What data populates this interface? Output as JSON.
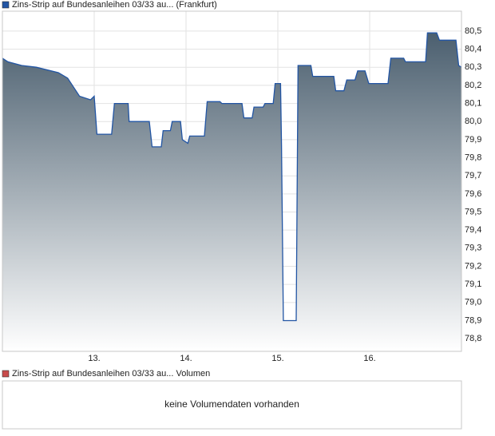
{
  "chart_data": [
    {
      "type": "area",
      "xlim": [
        12,
        17
      ],
      "xticks": [
        {
          "value": 13,
          "label": "13."
        },
        {
          "value": 14,
          "label": "14."
        },
        {
          "value": 15,
          "label": "15."
        },
        {
          "value": 16,
          "label": "16."
        }
      ],
      "ylim": [
        78.73,
        80.61
      ],
      "yticks": [
        {
          "value": 80.5,
          "label": "80,5"
        },
        {
          "value": 80.4,
          "label": "80,4"
        },
        {
          "value": 80.3,
          "label": "80,3"
        },
        {
          "value": 80.2,
          "label": "80,2"
        },
        {
          "value": 80.1,
          "label": "80,1"
        },
        {
          "value": 80.0,
          "label": "80,0"
        },
        {
          "value": 79.9,
          "label": "79,9"
        },
        {
          "value": 79.8,
          "label": "79,8"
        },
        {
          "value": 79.7,
          "label": "79,7"
        },
        {
          "value": 79.6,
          "label": "79,6"
        },
        {
          "value": 79.5,
          "label": "79,5"
        },
        {
          "value": 79.4,
          "label": "79,4"
        },
        {
          "value": 79.3,
          "label": "79,3"
        },
        {
          "value": 79.2,
          "label": "79,2"
        },
        {
          "value": 79.1,
          "label": "79,1"
        },
        {
          "value": 79.0,
          "label": "79,0"
        },
        {
          "value": 78.9,
          "label": "78,9"
        },
        {
          "value": 78.8,
          "label": "78,8"
        }
      ],
      "grid": true,
      "x": [
        12.0,
        12.06,
        12.21,
        12.37,
        12.61,
        12.71,
        12.84,
        12.96,
        13.0,
        13.03,
        13.19,
        13.22,
        13.37,
        13.38,
        13.6,
        13.63,
        13.73,
        13.75,
        13.83,
        13.85,
        13.94,
        13.96,
        14.02,
        14.04,
        14.2,
        14.23,
        14.37,
        14.39,
        14.61,
        14.63,
        14.72,
        14.74,
        14.84,
        14.86,
        14.95,
        14.97,
        15.03,
        15.04,
        15.06,
        15.2,
        15.22,
        15.36,
        15.38,
        15.61,
        15.63,
        15.72,
        15.75,
        15.84,
        15.87,
        15.95,
        15.99,
        16.2,
        16.23,
        16.37,
        16.39,
        16.61,
        16.63,
        16.73,
        16.76,
        16.94,
        16.97,
        17.0
      ],
      "series": [
        {
          "name": "Zins-Strip auf Bundesanleihen 03/33 au... (Frankfurt)",
          "color": "#2255a4",
          "values": [
            80.35,
            80.33,
            80.31,
            80.3,
            80.27,
            80.24,
            80.14,
            80.12,
            80.14,
            79.93,
            79.93,
            80.1,
            80.1,
            80.0,
            80.0,
            79.86,
            79.86,
            79.95,
            79.95,
            80.0,
            80.0,
            79.9,
            79.88,
            79.92,
            79.92,
            80.11,
            80.11,
            80.1,
            80.1,
            80.02,
            80.02,
            80.08,
            80.08,
            80.1,
            80.1,
            80.21,
            80.21,
            79.87,
            78.9,
            78.9,
            80.31,
            80.31,
            80.25,
            80.25,
            80.17,
            80.17,
            80.23,
            80.23,
            80.28,
            80.28,
            80.21,
            80.21,
            80.35,
            80.35,
            80.33,
            80.33,
            80.49,
            80.49,
            80.45,
            80.45,
            80.31,
            80.3
          ]
        }
      ]
    },
    {
      "type": "empty",
      "series": [
        {
          "name": "Zins-Strip auf Bundesanleihen 03/33 au... Volumen",
          "color": "#c84b4b"
        }
      ],
      "message": "keine Volumendaten vorhanden"
    }
  ]
}
